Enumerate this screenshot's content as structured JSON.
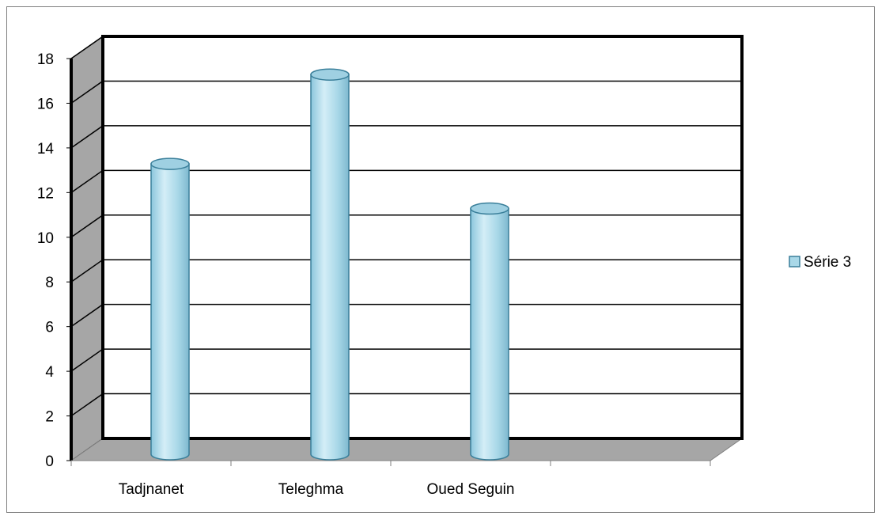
{
  "chart_data": {
    "type": "bar",
    "categories": [
      "Tadjnanet",
      "Teleghma",
      "Oued Seguin",
      ""
    ],
    "series": [
      {
        "name": "Série 3",
        "values": [
          13,
          17,
          11,
          null
        ]
      }
    ],
    "yticks": [
      "0",
      "2",
      "4",
      "6",
      "8",
      "10",
      "12",
      "14",
      "16",
      "18"
    ],
    "ylim": [
      0,
      18
    ],
    "grid": true,
    "legend": "right",
    "bar_shape": "cylinder",
    "colors": {
      "bar_fill": "#a9d8e8",
      "bar_stroke": "#3a7f9a",
      "floor": "#a6a6a6",
      "side_wall": "#a6a6a6",
      "grid": "#000000"
    }
  }
}
